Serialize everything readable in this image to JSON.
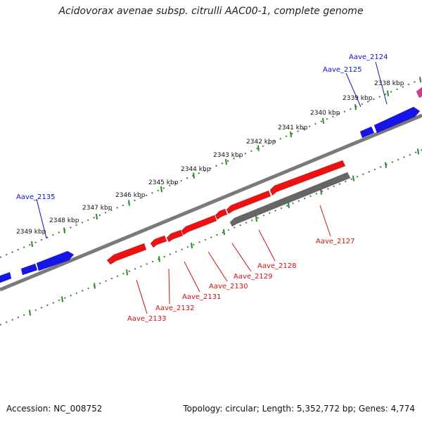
{
  "title": "Acidovorax avenae subsp. citrulli AAC00-1, complete genome",
  "footer": {
    "accession": "Accession: NC_008752",
    "summary": "Topology: circular; Length: 5,352,772 bp; Genes: 4,774"
  },
  "colors": {
    "forward_gene": "#1515e8",
    "reverse_gene": "#ee1111",
    "reverse_other": "#666666",
    "magenta_gene": "#e0359a",
    "backbone": "#7a7a7a",
    "tick": "#2a8a2a",
    "label_blue": "#1010cc",
    "label_red": "#cc1111"
  },
  "scale_labels": [
    "2338 kbp",
    "2339 kbp",
    "2340 kbp",
    "2341 kbp",
    "2342 kbp",
    "2343 kbp",
    "2344 kbp",
    "2345 kbp",
    "2346 kbp",
    "2347 kbp",
    "2348 kbp",
    "2349 kbp"
  ],
  "gene_labels": {
    "forward": [
      "Aave_2124",
      "Aave_2125",
      "Aave_2135"
    ],
    "reverse": [
      "Aave_2127",
      "Aave_2128",
      "Aave_2129",
      "Aave_2130",
      "Aave_2131",
      "Aave_2132",
      "Aave_2133"
    ]
  }
}
